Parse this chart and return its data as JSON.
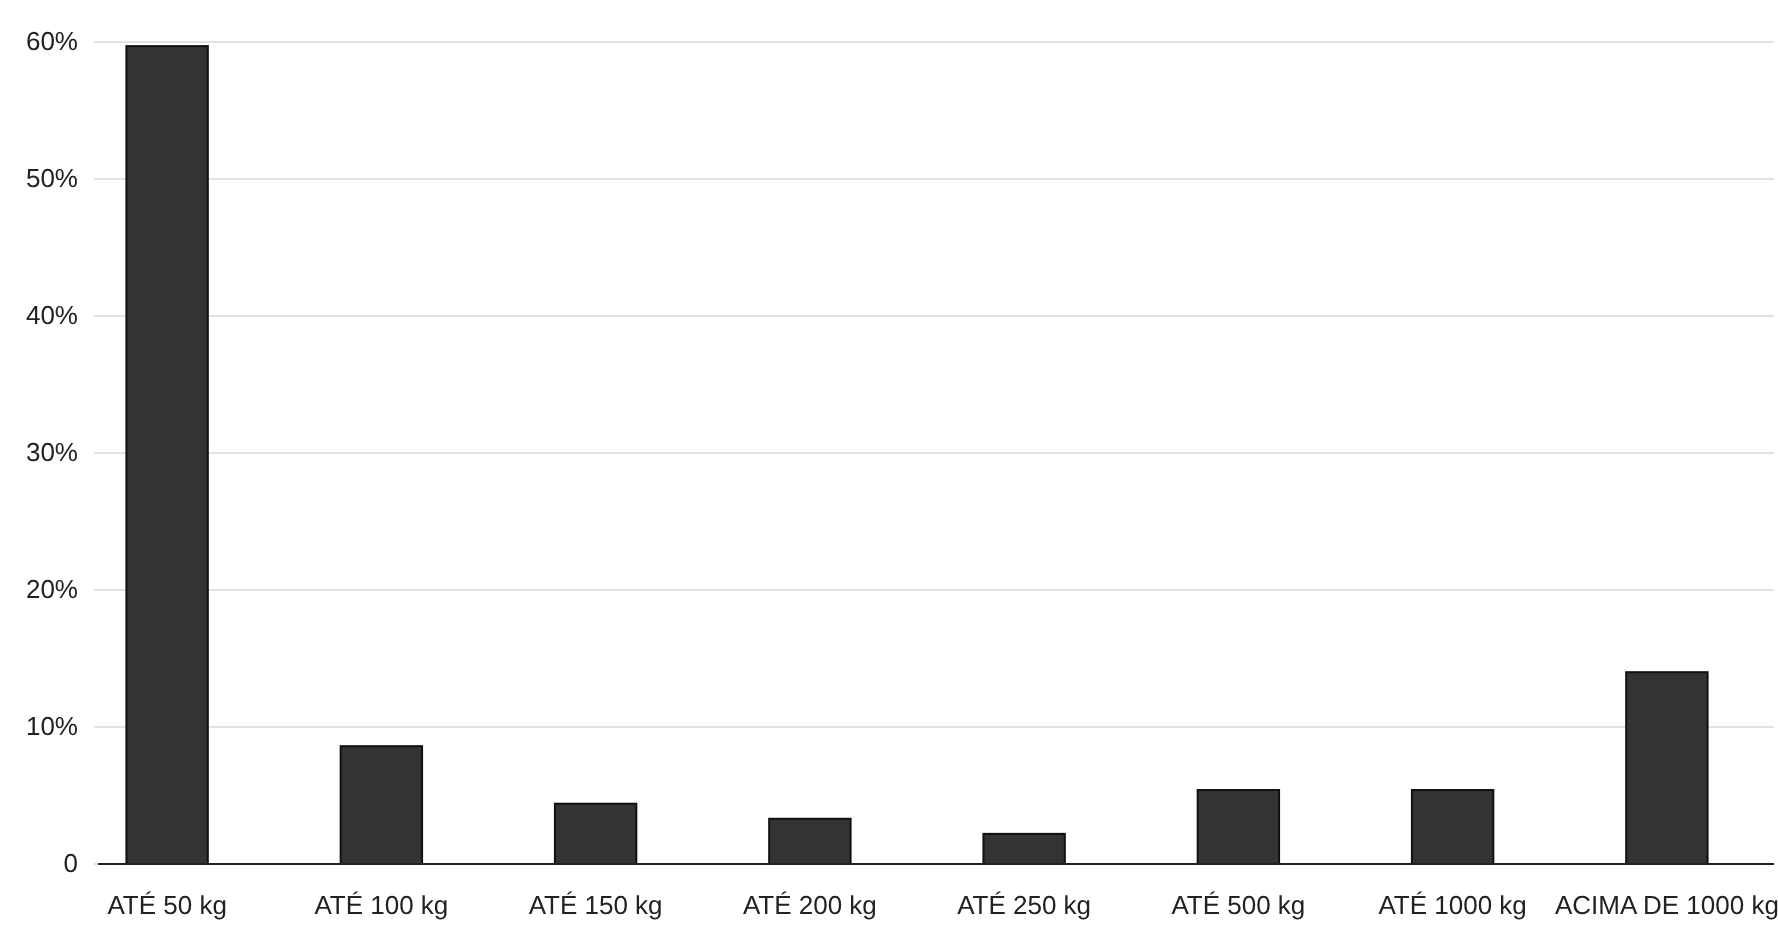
{
  "chart_data": {
    "type": "bar",
    "categories": [
      "ATÉ 50 kg",
      "ATÉ 100 kg",
      "ATÉ 150 kg",
      "ATÉ 200 kg",
      "ATÉ 250 kg",
      "ATÉ 500 kg",
      "ATÉ 1000 kg",
      "ACIMA DE 1000 kg"
    ],
    "values": [
      59.7,
      8.6,
      4.4,
      3.3,
      2.2,
      5.4,
      5.4,
      14.0
    ],
    "color": "#333333",
    "ylim": [
      0,
      60
    ],
    "yticks": [
      {
        "value": 0,
        "label": "0"
      },
      {
        "value": 10,
        "label": "10%"
      },
      {
        "value": 20,
        "label": "20%"
      },
      {
        "value": 30,
        "label": "30%"
      },
      {
        "value": 40,
        "label": "40%"
      },
      {
        "value": 50,
        "label": "50%"
      },
      {
        "value": 60,
        "label": "60%"
      }
    ],
    "grid": "y"
  }
}
